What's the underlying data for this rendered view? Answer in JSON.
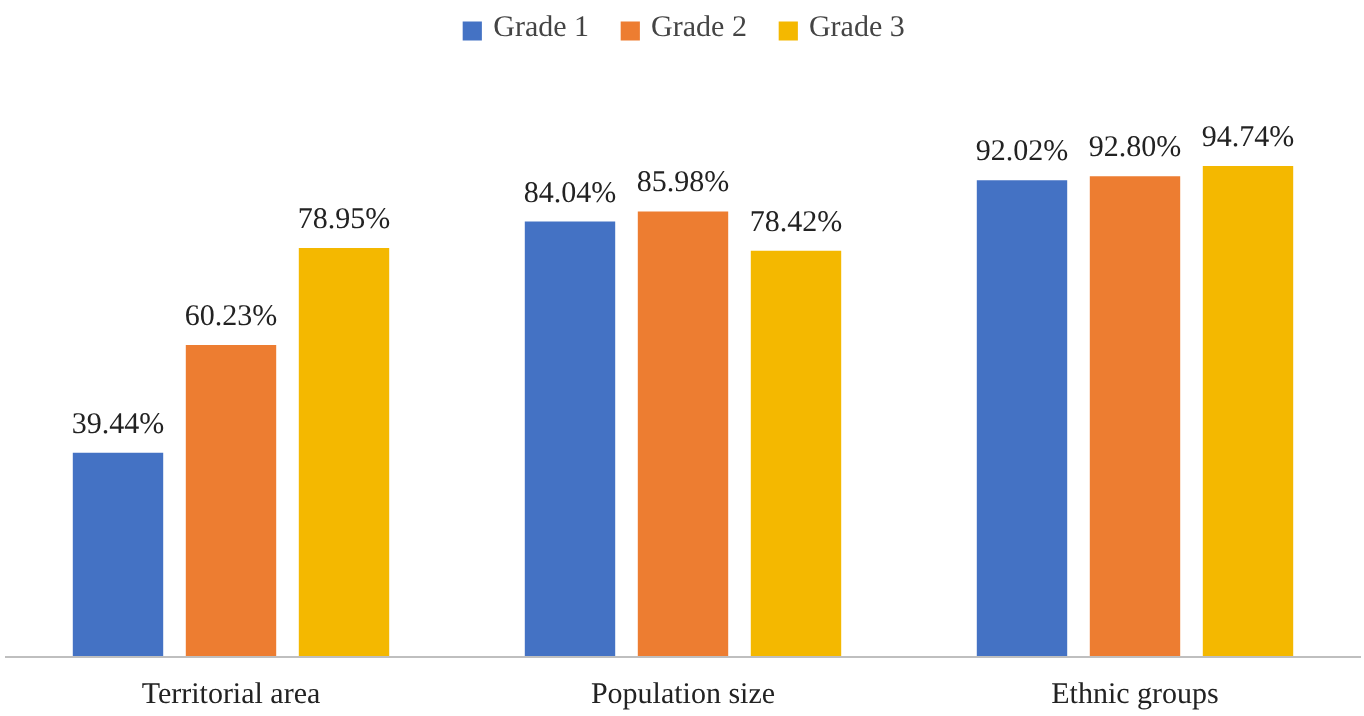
{
  "chart_data": {
    "type": "bar",
    "categories": [
      "Territorial area",
      "Population size",
      "Ethnic groups"
    ],
    "legend": "top",
    "grid": false,
    "series": [
      {
        "name": "Grade 1",
        "color": "#4472c4",
        "values": [
          39.44,
          84.04,
          92.02
        ],
        "value_labels": [
          "39.44%",
          "84.04%",
          "92.02%"
        ]
      },
      {
        "name": "Grade 2",
        "color": "#ed7d31",
        "values": [
          60.23,
          85.98,
          92.8
        ],
        "value_labels": [
          "60.23%",
          "85.98%",
          "92.80%"
        ]
      },
      {
        "name": "Grade 3",
        "color": "#f4b800",
        "values": [
          78.95,
          78.42,
          94.74
        ],
        "value_labels": [
          "78.95%",
          "78.42%",
          "94.74%"
        ]
      }
    ]
  }
}
